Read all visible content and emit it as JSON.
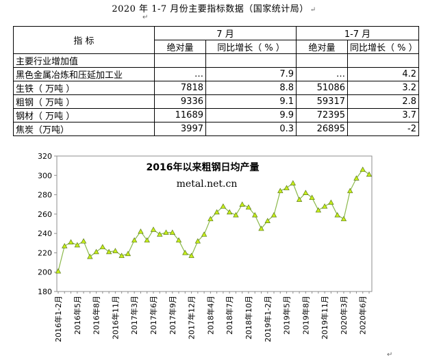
{
  "doc_title": "2020 年 1-7 月份主要指标数据（国家统计局）",
  "para_mark": "↵",
  "table": {
    "header_indicator": "指  标",
    "group_month": "7 月",
    "group_ytd": "1-7 月",
    "col_abs": "绝对量",
    "col_yoy": "同比增长（ % ）",
    "section_label": "主要行业增加值",
    "rows": [
      {
        "name": "黑色金属冶炼和压延加工业",
        "m_abs": "…",
        "m_yoy": "7.9",
        "ytd_abs": "…",
        "ytd_yoy": "4.2"
      },
      {
        "name": "生铁（ 万吨 ）",
        "m_abs": "7818",
        "m_yoy": "8.8",
        "ytd_abs": "51086",
        "ytd_yoy": "3.2"
      },
      {
        "name": "粗钢（ 万吨 ）",
        "m_abs": "9336",
        "m_yoy": "9.1",
        "ytd_abs": "59317",
        "ytd_yoy": "2.8"
      },
      {
        "name": "钢材（ 万吨 ）",
        "m_abs": "11689",
        "m_yoy": "9.9",
        "ytd_abs": "72395",
        "ytd_yoy": "3.7"
      },
      {
        "name": "焦炭（万吨）",
        "m_abs": "3997",
        "m_yoy": "0.3",
        "ytd_abs": "26895",
        "ytd_yoy": "-2"
      }
    ]
  },
  "chart_data": {
    "type": "line",
    "title": "2016年以来粗钢日均产量",
    "subtitle": "metal.net.cn",
    "ylim": [
      180,
      320
    ],
    "yticks": [
      180,
      200,
      220,
      240,
      260,
      280,
      300,
      320
    ],
    "grid": false,
    "line_color": "#8ab84a",
    "marker_color": "#c8ef1a",
    "x": [
      "2016年1-2月",
      "2016年3月",
      "2016年4月",
      "2016年5月",
      "2016年6月",
      "2016年7月",
      "2016年8月",
      "2016年9月",
      "2016年10月",
      "2016年11月",
      "2016年12月",
      "2017年1-2月",
      "2017年3月",
      "2017年4月",
      "2017年5月",
      "2017年6月",
      "2017年7月",
      "2017年8月",
      "2017年9月",
      "2017年10月",
      "2017年11月",
      "2017年12月",
      "2018年1-2月",
      "2018年3月",
      "2018年4月",
      "2018年5月",
      "2018年6月",
      "2018年7月",
      "2018年8月",
      "2018年9月",
      "2018年10月",
      "2018年11月",
      "2018年12月",
      "2019年1-2月",
      "2019年3月",
      "2019年4月",
      "2019年5月",
      "2019年6月",
      "2019年7月",
      "2019年8月",
      "2019年9月",
      "2019年10月",
      "2019年11月",
      "2019年12月",
      "2020年1-2月",
      "2020年3月",
      "2020年4月",
      "2020年5月",
      "2020年6月",
      "2020年7月"
    ],
    "xtick_labels": [
      "2016年1-2月",
      "2016年5月",
      "2016年8月",
      "2016年11月",
      "2017年3月",
      "2017年6月",
      "2017年9月",
      "2017年12月",
      "2018年4月",
      "2018年7月",
      "2018年10月",
      "2019年1-2月",
      "2019年5月",
      "2019年8月",
      "2019年11月",
      "2020年3月",
      "2020年6月"
    ],
    "values": [
      201,
      227,
      231,
      228,
      232,
      216,
      221,
      226,
      221,
      222,
      217,
      219,
      233,
      242,
      233,
      244,
      239,
      241,
      241,
      233,
      220,
      217,
      232,
      239,
      255,
      262,
      268,
      262,
      259,
      270,
      267,
      259,
      245,
      253,
      259,
      284,
      287,
      292,
      275,
      282,
      277,
      264,
      268,
      272,
      259,
      255,
      284,
      297,
      306,
      301
    ]
  }
}
